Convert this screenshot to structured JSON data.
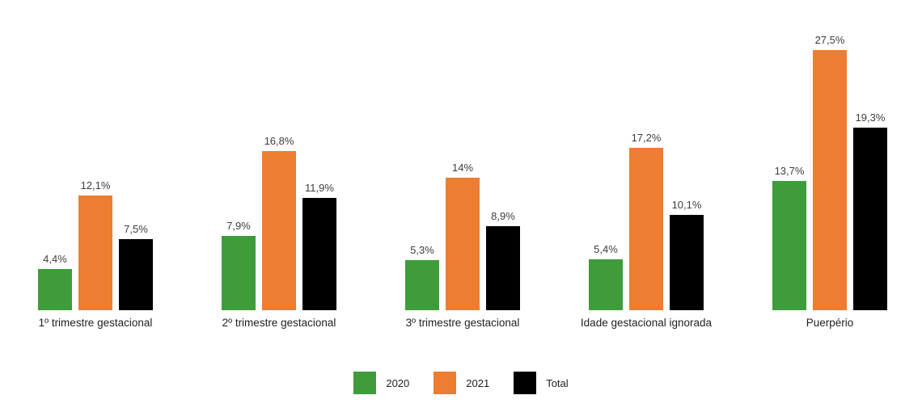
{
  "chart_data": {
    "type": "bar",
    "title": "",
    "xlabel": "",
    "ylabel": "",
    "value_suffix": "%",
    "decimal_separator": ",",
    "grid": false,
    "axes_visible": false,
    "legend_position": "bottom",
    "background_color": "#ffffff",
    "categories": [
      "1º trimestre gestacional",
      "2º trimestre gestacional",
      "3º trimestre gestacional",
      "Idade gestacional ignorada",
      "Puerpério"
    ],
    "series": [
      {
        "name": "2020",
        "color": "#3F9C3A",
        "values": [
          4.4,
          7.9,
          5.3,
          5.4,
          13.7
        ],
        "labels": [
          "4,4%",
          "7,9%",
          "5,3%",
          "5,4%",
          "13,7%"
        ]
      },
      {
        "name": "2021",
        "color": "#ED7D31",
        "values": [
          12.1,
          16.8,
          14,
          17.2,
          27.5
        ],
        "labels": [
          "12,1%",
          "16,8%",
          "14%",
          "17,2%",
          "27,5%"
        ]
      },
      {
        "name": "Total",
        "color": "#000000",
        "values": [
          7.5,
          11.9,
          8.9,
          10.1,
          19.3
        ],
        "labels": [
          "7,5%",
          "11,9%",
          "8,9%",
          "10,1%",
          "19,3%"
        ]
      }
    ],
    "ylim": [
      0,
      30
    ],
    "legend": [
      "2020",
      "2021",
      "Total"
    ]
  }
}
